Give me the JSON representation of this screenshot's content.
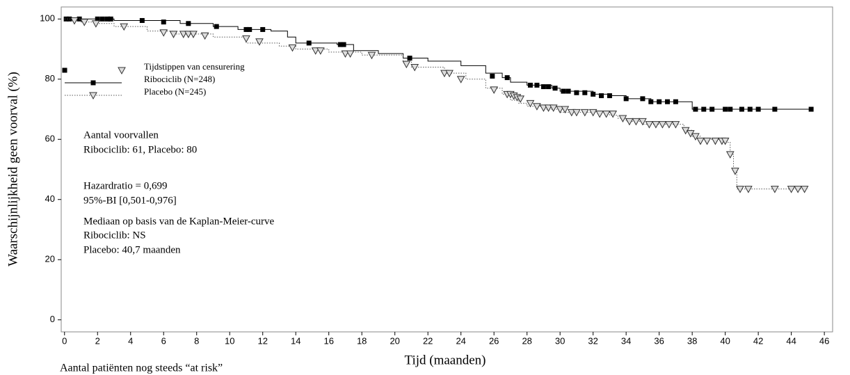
{
  "chart_data": {
    "type": "line",
    "step": true,
    "ylabel": "Waarschijnlijkheid geen voorval (%)",
    "xlabel": "Tijd (maanden)",
    "footer": "Aantal patiënten nog steeds “at risk”",
    "legend_title": "Tijdstippen van censurering",
    "annotations": [
      "Aantal voorvallen",
      "Ribociclib: 61, Placebo: 80",
      "Hazardratio = 0,699",
      "95%-BI [0,501-0,976]",
      "Mediaan op basis van de Kaplan-Meier-curve",
      "Ribociclib: NS",
      "Placebo: 40,7 maanden"
    ],
    "xlim": [
      -0.2,
      46.5
    ],
    "ylim": [
      -4,
      104
    ],
    "xticks": [
      0,
      2,
      4,
      6,
      8,
      10,
      12,
      14,
      16,
      18,
      20,
      22,
      24,
      26,
      28,
      30,
      32,
      34,
      36,
      38,
      40,
      42,
      44,
      46
    ],
    "yticks": [
      0,
      20,
      40,
      60,
      80,
      100
    ],
    "series": [
      {
        "name": "Ribociclib (N=248)",
        "color": "#000000",
        "dash": "solid",
        "marker": "square",
        "x": [
          0,
          3,
          7,
          9,
          10.5,
          12.5,
          13.5,
          14,
          16.5,
          17.5,
          19,
          20.5,
          22,
          24,
          25.5,
          26.5,
          27,
          28,
          29.5,
          30,
          32,
          33,
          34,
          35.5,
          38,
          45.2
        ],
        "values": [
          100,
          99.5,
          98.5,
          97.5,
          96.5,
          96,
          94,
          92,
          91.5,
          89.5,
          88.5,
          87,
          86,
          84.5,
          82,
          80.5,
          79,
          78,
          77,
          76,
          75,
          74.5,
          73.5,
          72.5,
          70,
          70
        ],
        "censor_x": [
          0.1,
          0.3,
          0.9,
          2,
          2.3,
          2.6,
          2.8,
          4.7,
          6,
          7.5,
          9.2,
          11,
          11.2,
          12,
          14.8,
          16.7,
          16.9,
          20.9,
          25.9,
          26.8,
          28.2,
          28.6,
          29,
          29.3,
          29.7,
          30.2,
          30.5,
          31,
          31.5,
          32,
          32.5,
          33,
          34,
          35,
          35.5,
          36,
          36.5,
          37,
          38.2,
          38.7,
          39.2,
          40,
          40.3,
          41,
          41.5,
          42,
          43,
          45.2
        ],
        "censor_values": [
          100,
          100,
          100,
          100,
          100,
          100,
          100,
          99.5,
          99,
          98.5,
          97.5,
          96.5,
          96.5,
          96.5,
          92,
          91.5,
          91.5,
          87,
          81,
          80.5,
          78,
          78,
          77.5,
          77.5,
          77,
          76,
          76,
          75.5,
          75.5,
          75,
          74.5,
          74.5,
          73.5,
          73.5,
          72.5,
          72.5,
          72.5,
          72.5,
          70,
          70,
          70,
          70,
          70,
          70,
          70,
          70,
          70,
          70
        ]
      },
      {
        "name": "Placebo (N=245)",
        "color": "#555555",
        "dash": "dotted",
        "marker": "triangle",
        "x": [
          0,
          1,
          2,
          3,
          5,
          6.5,
          9,
          11,
          13,
          14,
          16,
          18,
          20.5,
          21,
          23,
          24.3,
          25.5,
          26.5,
          27,
          27.5,
          28,
          29,
          30,
          33,
          33.5,
          34,
          35,
          37.5,
          38,
          38.5,
          40,
          40.3,
          40.5,
          40.7,
          45
        ],
        "values": [
          100,
          99,
          98.5,
          97.5,
          96,
          95,
          94,
          92,
          91,
          90,
          89,
          88,
          86,
          84,
          82,
          80,
          77,
          75,
          73,
          72,
          71,
          70,
          69,
          68,
          67,
          66,
          65,
          63,
          61,
          60,
          59,
          55,
          49.5,
          43.5,
          43.5
        ],
        "censor_x": [
          0.6,
          1.2,
          1.9,
          3.6,
          6,
          6.6,
          7.2,
          7.5,
          7.8,
          8.5,
          11,
          11.8,
          13.8,
          15.2,
          15.5,
          17,
          17.3,
          18.6,
          20.7,
          21.2,
          23,
          23.3,
          24,
          26,
          26.8,
          27,
          27.2,
          27.4,
          27.6,
          28.2,
          28.6,
          29,
          29.3,
          29.6,
          30,
          30.3,
          30.7,
          31,
          31.5,
          32,
          32.4,
          32.8,
          33.2,
          33.8,
          34.2,
          34.6,
          35,
          35.4,
          35.8,
          36.2,
          36.6,
          37,
          37.6,
          37.9,
          38.2,
          38.5,
          38.9,
          39.4,
          39.8,
          40,
          40.3,
          40.6,
          40.9,
          41.4,
          43,
          44,
          44.4,
          44.8
        ],
        "censor_values": [
          99.5,
          99,
          98.5,
          97.5,
          95.5,
          95,
          95,
          95,
          95,
          94.5,
          93.5,
          92.5,
          90.5,
          89.5,
          89.5,
          88.5,
          88.5,
          88,
          85,
          84,
          82,
          82,
          80,
          76.5,
          75,
          75,
          74.5,
          74,
          73.5,
          72,
          71,
          70.5,
          70.5,
          70.5,
          70,
          70,
          69,
          69,
          69,
          69,
          68.5,
          68.5,
          68.5,
          67,
          66,
          66,
          66,
          65,
          65,
          65,
          65,
          65,
          63,
          62,
          61,
          59.5,
          59.5,
          59.5,
          59.5,
          59.5,
          55,
          49.5,
          43.5,
          43.5,
          43.5,
          43.5,
          43.5,
          43.5
        ]
      }
    ]
  }
}
